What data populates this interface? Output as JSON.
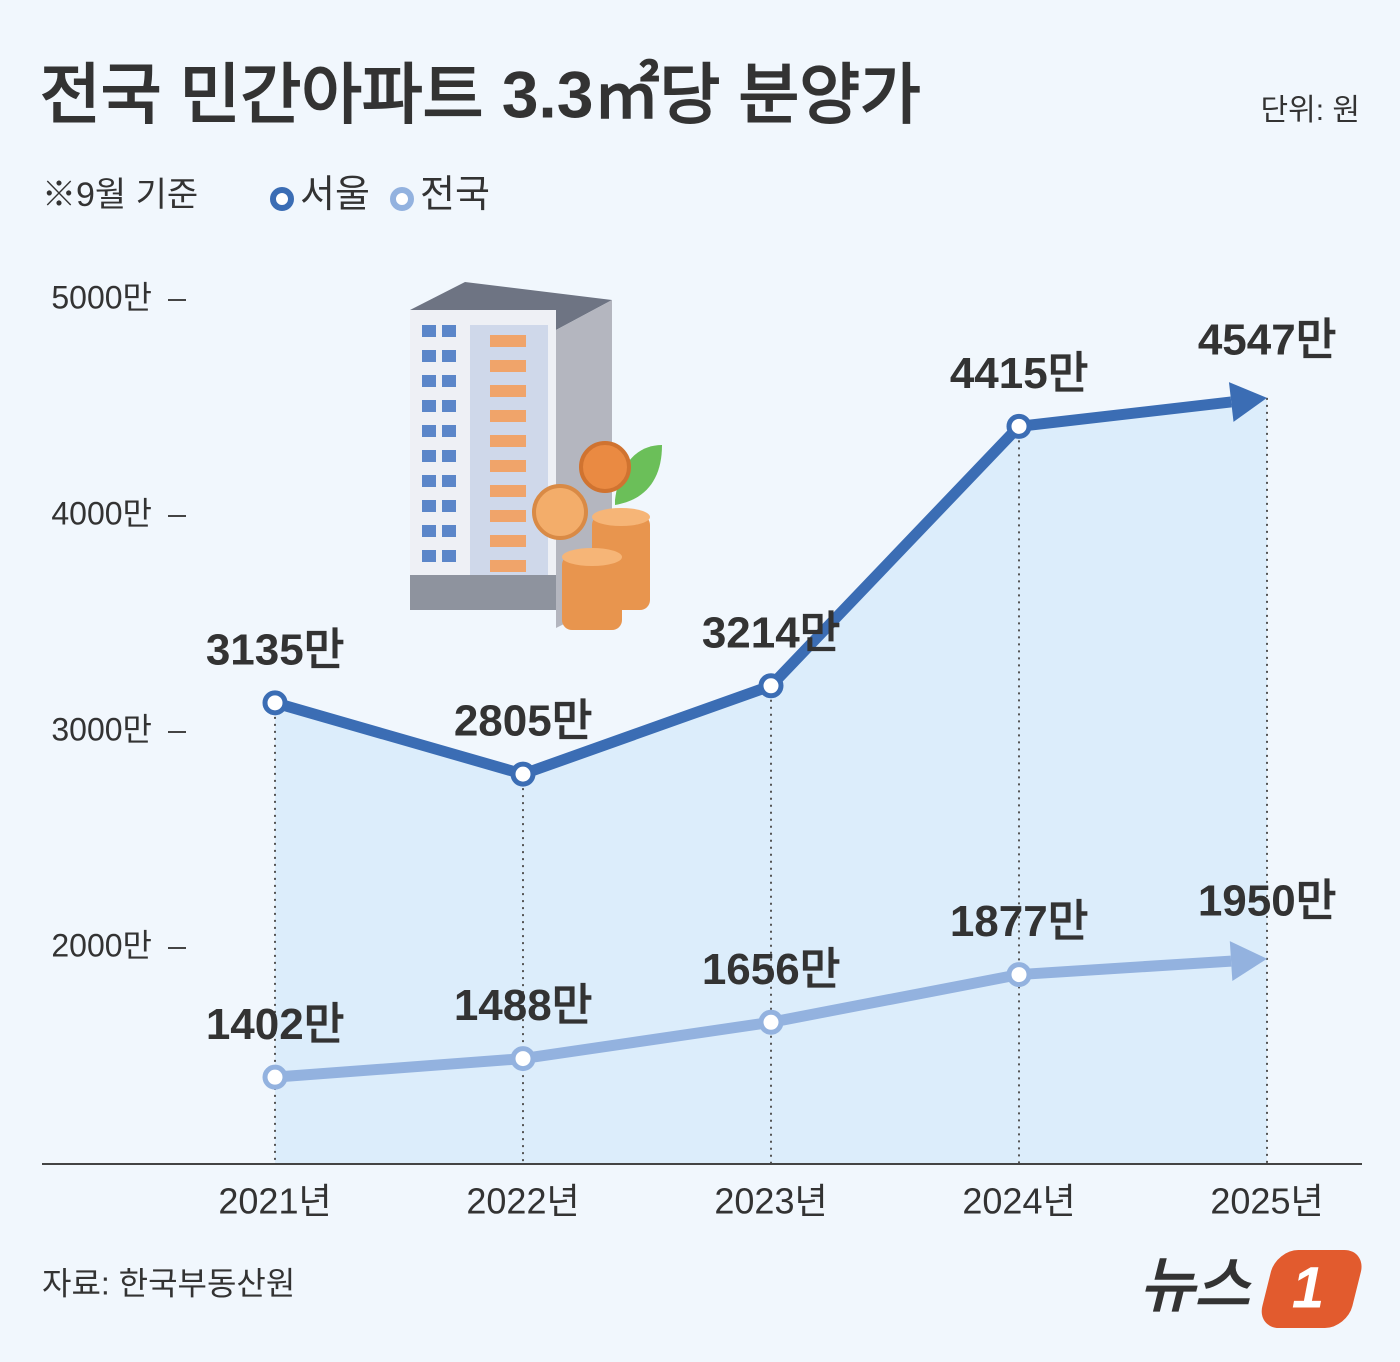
{
  "chart_data": {
    "type": "line",
    "title": "전국 민간아파트 3.3㎡당 분양가",
    "unit": "단위: 원",
    "note": "※9월 기준",
    "source": "자료: 한국부동산원",
    "logo": {
      "text": "뉴스",
      "badge": "1"
    },
    "categories": [
      "2021년",
      "2022년",
      "2023년",
      "2024년",
      "2025년"
    ],
    "series": [
      {
        "name": "서울",
        "color": "#3b6db4",
        "values": [
          3135,
          2805,
          3214,
          4415,
          4547
        ],
        "value_labels": [
          "3135만",
          "2805만",
          "3214만",
          "4415만",
          "4547만"
        ]
      },
      {
        "name": "전국",
        "color": "#93b2df",
        "values": [
          1402,
          1488,
          1656,
          1877,
          1950
        ],
        "value_labels": [
          "1402만",
          "1488만",
          "1656만",
          "1877만",
          "1950만"
        ]
      }
    ],
    "ylim": [
      1000,
      5000
    ],
    "yticks": [
      {
        "value": 2000,
        "label": "2000만"
      },
      {
        "value": 3000,
        "label": "3000만"
      },
      {
        "value": 4000,
        "label": "4000만"
      },
      {
        "value": 5000,
        "label": "5000만"
      }
    ],
    "fill_color": "#dcedfb"
  }
}
